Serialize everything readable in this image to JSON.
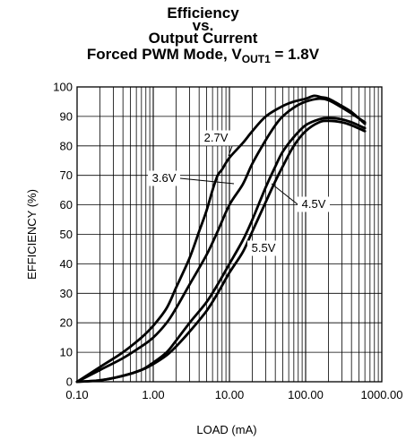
{
  "chart_data": {
    "type": "line",
    "title": {
      "line1": "Efficiency",
      "line2": "vs.",
      "line3": "Output Current",
      "line4_main": "Forced PWM Mode, V",
      "line4_sub": "OUT1",
      "line4_tail": " = 1.8V"
    },
    "xlabel": "LOAD (mA)",
    "ylabel": "EFFICIENCY (%)",
    "x_scale": "log",
    "xlim": [
      0.1,
      1000
    ],
    "ylim": [
      0,
      100
    ],
    "grid": true,
    "x_tick_labels": [
      "0.10",
      "1.00",
      "10.00",
      "100.00",
      "1000.00"
    ],
    "x_tick_values": [
      0.1,
      1,
      10,
      100,
      1000
    ],
    "y_tick_labels": [
      "0",
      "10",
      "20",
      "30",
      "40",
      "50",
      "60",
      "70",
      "80",
      "90",
      "100"
    ],
    "y_tick_values": [
      0,
      10,
      20,
      30,
      40,
      50,
      60,
      70,
      80,
      90,
      100
    ],
    "series": [
      {
        "name": "2.7V",
        "x": [
          0.1,
          0.2,
          0.4,
          0.7,
          1.0,
          1.5,
          2.0,
          3.0,
          4.0,
          5.0,
          6.0,
          7.0,
          8.0,
          10,
          15,
          20,
          30,
          50,
          70,
          100,
          130,
          160,
          200,
          300,
          400,
          600
        ],
        "y": [
          0,
          5,
          10,
          15,
          19,
          25,
          32,
          42,
          51,
          58,
          65,
          70,
          72,
          76,
          81,
          85,
          90,
          93.5,
          95,
          96,
          97,
          96.5,
          96,
          93.5,
          91.5,
          87.5
        ]
      },
      {
        "name": "3.6V",
        "x": [
          0.1,
          0.2,
          0.4,
          0.7,
          1.0,
          1.5,
          2.0,
          3.0,
          5.0,
          7.0,
          10,
          15,
          20,
          30,
          40,
          50,
          70,
          100,
          150,
          200,
          300,
          400,
          600
        ],
        "y": [
          0,
          4,
          8,
          12,
          15,
          20,
          25,
          33,
          43,
          51,
          60,
          67,
          74,
          82,
          87,
          90,
          93,
          95,
          96,
          95.5,
          93,
          91,
          88
        ]
      },
      {
        "name": "4.5V",
        "x": [
          0.1,
          0.2,
          0.4,
          0.7,
          1.0,
          1.5,
          2.0,
          3.0,
          5.0,
          7.0,
          10,
          15,
          20,
          30,
          40,
          50,
          70,
          100,
          150,
          200,
          300,
          400,
          600
        ],
        "y": [
          0,
          0.5,
          2,
          4,
          6.5,
          10,
          14,
          20,
          27,
          33,
          40,
          48,
          55,
          66,
          73,
          78,
          83,
          87,
          89,
          89.5,
          89,
          88,
          86
        ]
      },
      {
        "name": "5.5V",
        "x": [
          0.1,
          0.2,
          0.4,
          0.7,
          1.0,
          1.5,
          2.0,
          3.0,
          5.0,
          7.0,
          10,
          15,
          20,
          30,
          40,
          50,
          70,
          100,
          150,
          200,
          300,
          400,
          600
        ],
        "y": [
          0,
          0.5,
          2,
          4,
          6,
          9,
          12,
          17,
          24,
          30,
          37,
          44,
          51,
          61,
          68,
          73,
          80,
          85,
          88,
          88.5,
          88,
          87,
          85
        ]
      }
    ],
    "annotations": [
      {
        "text": "2.7V",
        "target_series": "2.7V"
      },
      {
        "text": "3.6V",
        "target_series": "3.6V"
      },
      {
        "text": "4.5V",
        "target_series": "4.5V"
      },
      {
        "text": "5.5V",
        "target_series": "5.5V"
      }
    ]
  }
}
